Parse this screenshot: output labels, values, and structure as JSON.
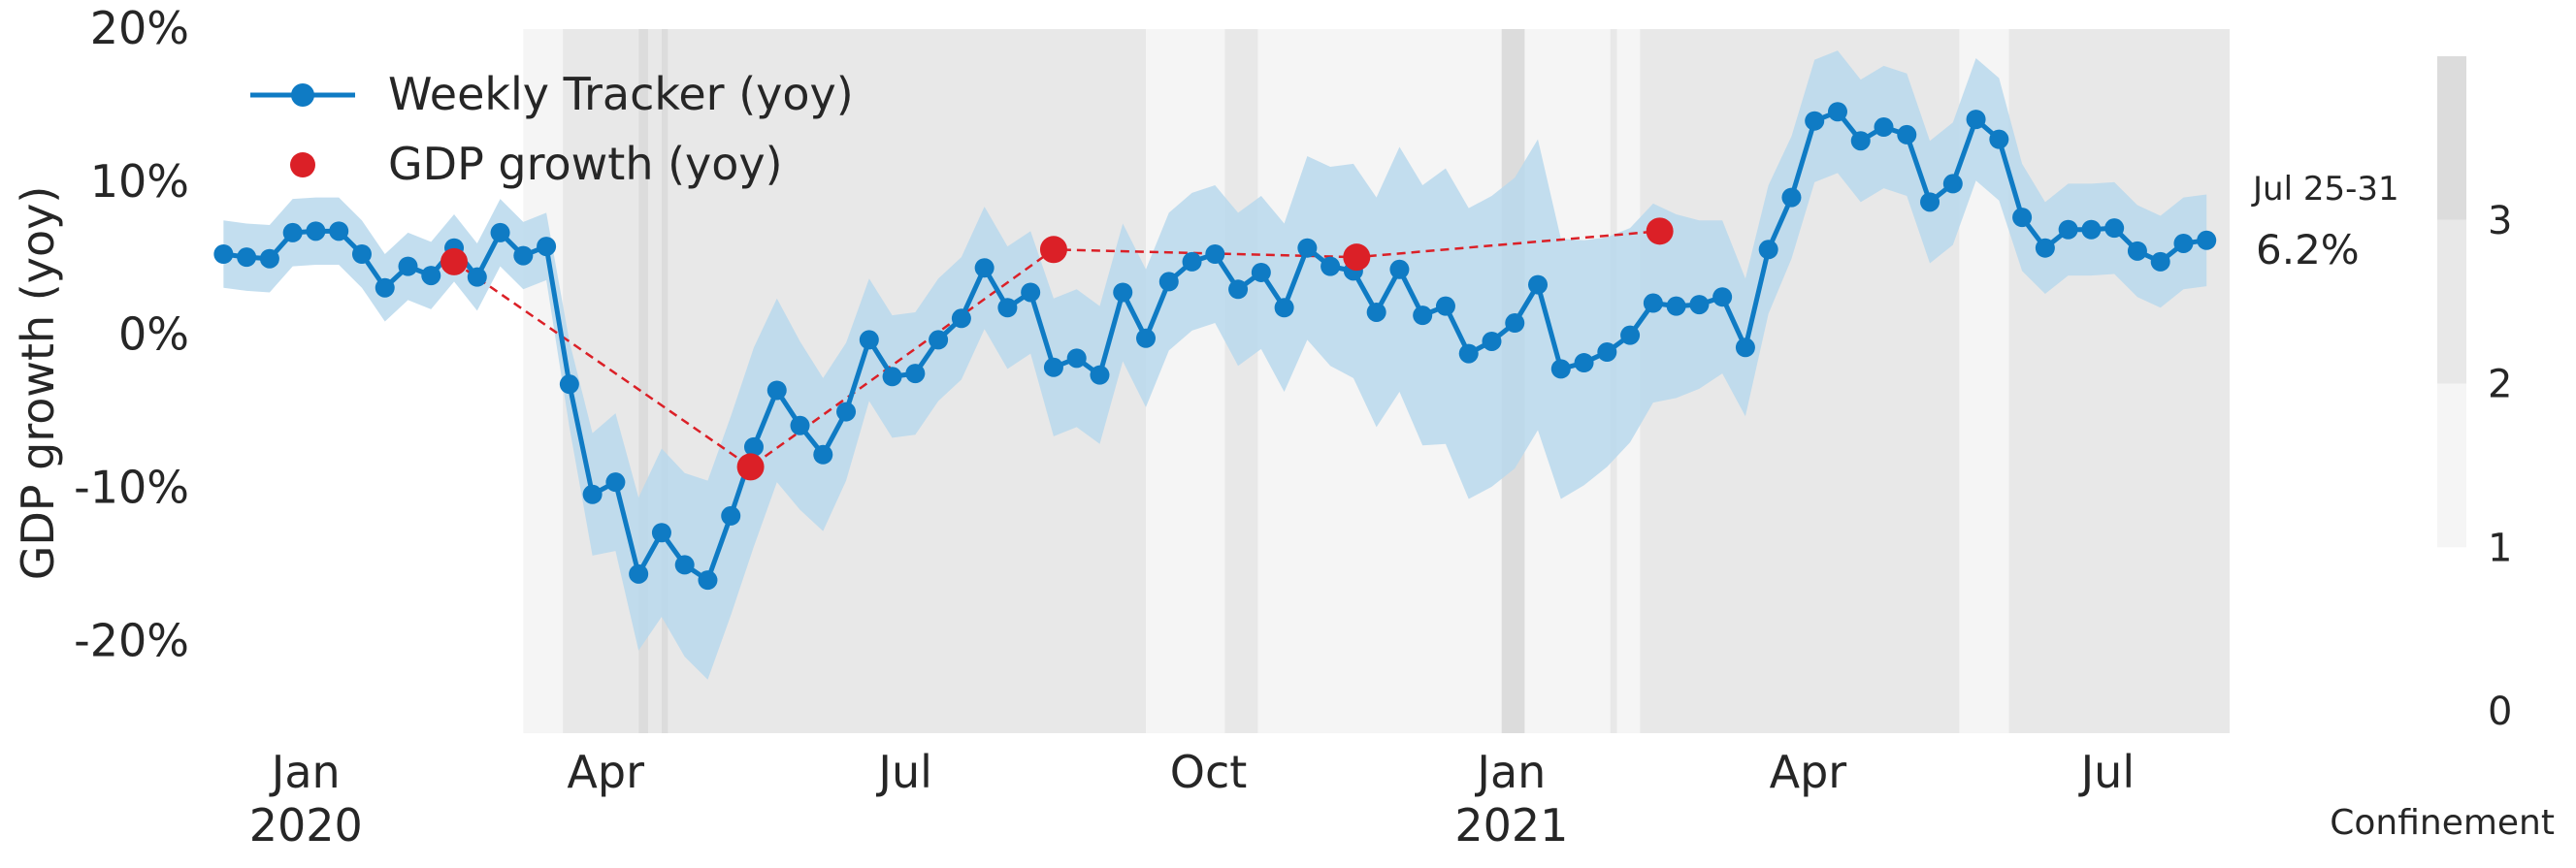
{
  "chart_data": {
    "type": "line",
    "title": "",
    "xlabel": "",
    "ylabel": "GDP growth (yoy)",
    "ylim": [
      -26,
      20
    ],
    "x_range": [
      "2019-12-01",
      "2021-08-07"
    ],
    "y_ticks": [
      {
        "value": 20,
        "label": "20%"
      },
      {
        "value": 10,
        "label": "10%"
      },
      {
        "value": 0,
        "label": "0%"
      },
      {
        "value": -10,
        "label": "-10%"
      },
      {
        "value": -20,
        "label": "-20%"
      }
    ],
    "x_ticks": [
      {
        "date": "2020-01-01",
        "label": "Jan",
        "label2": "2020"
      },
      {
        "date": "2020-04-01",
        "label": "Apr",
        "label2": ""
      },
      {
        "date": "2020-07-01",
        "label": "Jul",
        "label2": ""
      },
      {
        "date": "2020-10-01",
        "label": "Oct",
        "label2": ""
      },
      {
        "date": "2021-01-01",
        "label": "Jan",
        "label2": "2021"
      },
      {
        "date": "2021-04-01",
        "label": "Apr",
        "label2": ""
      },
      {
        "date": "2021-07-01",
        "label": "Jul",
        "label2": ""
      }
    ],
    "grid": false,
    "legend_position": "top-left",
    "legend": [
      {
        "label": "Weekly Tracker (yoy)",
        "color": "#0f7bc4",
        "marker": "line-dot"
      },
      {
        "label": "GDP growth (yoy)",
        "color": "#db2027",
        "marker": "dot"
      }
    ],
    "tracker": {
      "name": "Weekly Tracker (yoy)",
      "color": "#0f7bc4",
      "band_color": "#b9d8ec",
      "start_date": "2019-12-07",
      "step_days": 7,
      "values": [
        5.3,
        5.1,
        5.0,
        6.7,
        6.8,
        6.8,
        5.3,
        3.1,
        4.5,
        3.9,
        5.7,
        3.8,
        6.7,
        5.2,
        5.8,
        -3.2,
        -10.4,
        -9.6,
        -15.6,
        -12.9,
        -15.0,
        -16.0,
        -11.8,
        -7.3,
        -3.6,
        -5.9,
        -7.8,
        -5.0,
        -0.3,
        -2.7,
        -2.5,
        -0.3,
        1.1,
        4.4,
        1.8,
        2.8,
        -2.1,
        -1.5,
        -2.6,
        2.8,
        -0.2,
        3.5,
        4.8,
        5.3,
        3.0,
        4.1,
        1.8,
        5.7,
        4.5,
        4.2,
        1.5,
        4.3,
        1.3,
        1.9,
        -1.2,
        -0.4,
        0.8,
        3.3,
        -2.2,
        -1.8,
        -1.1,
        0.0,
        2.1,
        1.9,
        2.0,
        2.5,
        -0.8,
        5.6,
        9.0,
        14.0,
        14.6,
        12.7,
        13.6,
        13.1,
        8.7,
        9.9,
        14.1,
        12.8,
        7.7,
        5.7,
        6.9,
        6.9,
        7.0,
        5.5,
        4.8,
        6.0,
        6.2
      ],
      "band_width": [
        2.2,
        2.2,
        2.2,
        2.2,
        2.2,
        2.2,
        2.2,
        2.2,
        2.2,
        2.2,
        2.2,
        2.2,
        2.2,
        2.2,
        2.2,
        2.8,
        4.0,
        4.5,
        5.0,
        5.5,
        6.0,
        6.5,
        6.5,
        6.5,
        6.0,
        5.5,
        5.0,
        4.5,
        4.0,
        4.0,
        4.0,
        4.0,
        4.0,
        4.0,
        4.0,
        4.0,
        4.5,
        4.5,
        4.5,
        4.5,
        4.5,
        4.5,
        4.5,
        4.5,
        5.0,
        5.0,
        5.5,
        6.0,
        6.5,
        7.0,
        7.5,
        8.0,
        8.5,
        9.0,
        9.5,
        9.5,
        9.5,
        9.5,
        8.5,
        8.0,
        7.5,
        7.0,
        6.5,
        6.0,
        5.5,
        5.0,
        4.5,
        4.2,
        4.0,
        4.0,
        4.0,
        4.0,
        4.0,
        4.0,
        4.0,
        4.0,
        4.0,
        4.0,
        3.5,
        3.0,
        3.0,
        3.0,
        3.0,
        3.0,
        3.0,
        3.0,
        3.0
      ]
    },
    "gdp": {
      "name": "GDP growth (yoy)",
      "color": "#db2027",
      "points": [
        {
          "date": "2020-02-15",
          "value": 4.8
        },
        {
          "date": "2020-05-15",
          "value": -8.6
        },
        {
          "date": "2020-08-15",
          "value": 5.6
        },
        {
          "date": "2020-11-15",
          "value": 5.1
        },
        {
          "date": "2021-02-15",
          "value": 6.8
        }
      ]
    },
    "confinement": {
      "label": "Confinement",
      "scale_ticks": [
        0,
        1,
        2,
        3
      ],
      "scale_colors": [
        "#f5f5f5",
        "#e8e8e8",
        "#dcdcdc"
      ],
      "regions": [
        {
          "start": "2020-03-07",
          "end": "2020-03-19",
          "level": 1
        },
        {
          "start": "2020-03-19",
          "end": "2020-04-11",
          "level": 2
        },
        {
          "start": "2020-04-11",
          "end": "2020-04-14",
          "level": 3
        },
        {
          "start": "2020-04-14",
          "end": "2020-04-18",
          "level": 2
        },
        {
          "start": "2020-04-18",
          "end": "2020-04-20",
          "level": 3
        },
        {
          "start": "2020-04-20",
          "end": "2020-09-12",
          "level": 2
        },
        {
          "start": "2020-09-12",
          "end": "2020-10-06",
          "level": 1
        },
        {
          "start": "2020-10-06",
          "end": "2020-10-16",
          "level": 2
        },
        {
          "start": "2020-10-16",
          "end": "2020-12-29",
          "level": 1
        },
        {
          "start": "2020-12-29",
          "end": "2021-01-05",
          "level": 3
        },
        {
          "start": "2021-01-05",
          "end": "2021-01-31",
          "level": 1
        },
        {
          "start": "2021-01-31",
          "end": "2021-02-02",
          "level": 2
        },
        {
          "start": "2021-02-02",
          "end": "2021-02-09",
          "level": 1
        },
        {
          "start": "2021-02-09",
          "end": "2021-05-17",
          "level": 2
        },
        {
          "start": "2021-05-17",
          "end": "2021-06-01",
          "level": 1
        },
        {
          "start": "2021-06-01",
          "end": "2021-08-07",
          "level": 2
        }
      ]
    },
    "latest_annotation": {
      "period": "Jul 25-31",
      "value": "6.2%"
    }
  }
}
